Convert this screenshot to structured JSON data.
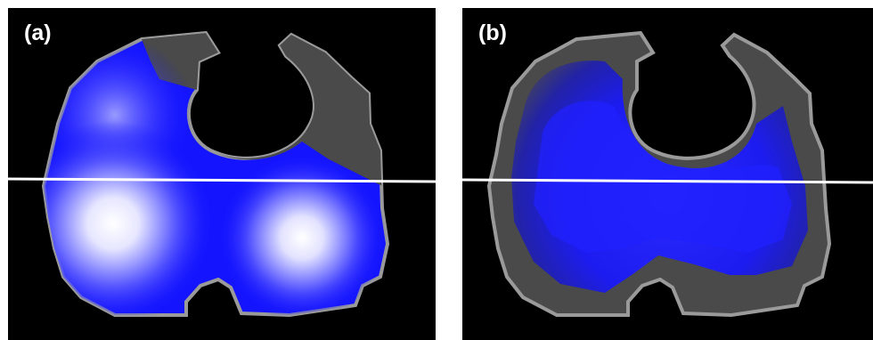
{
  "panels": [
    {
      "id": "a",
      "label": "(a)"
    },
    {
      "id": "b",
      "label": "(b)"
    }
  ],
  "colors": {
    "background": "#000000",
    "outline": "#9a9a9a",
    "tissue": "#4a4a4a",
    "signal": "#1010ff",
    "highlight": "#ffffff",
    "line": "#ffffff"
  }
}
